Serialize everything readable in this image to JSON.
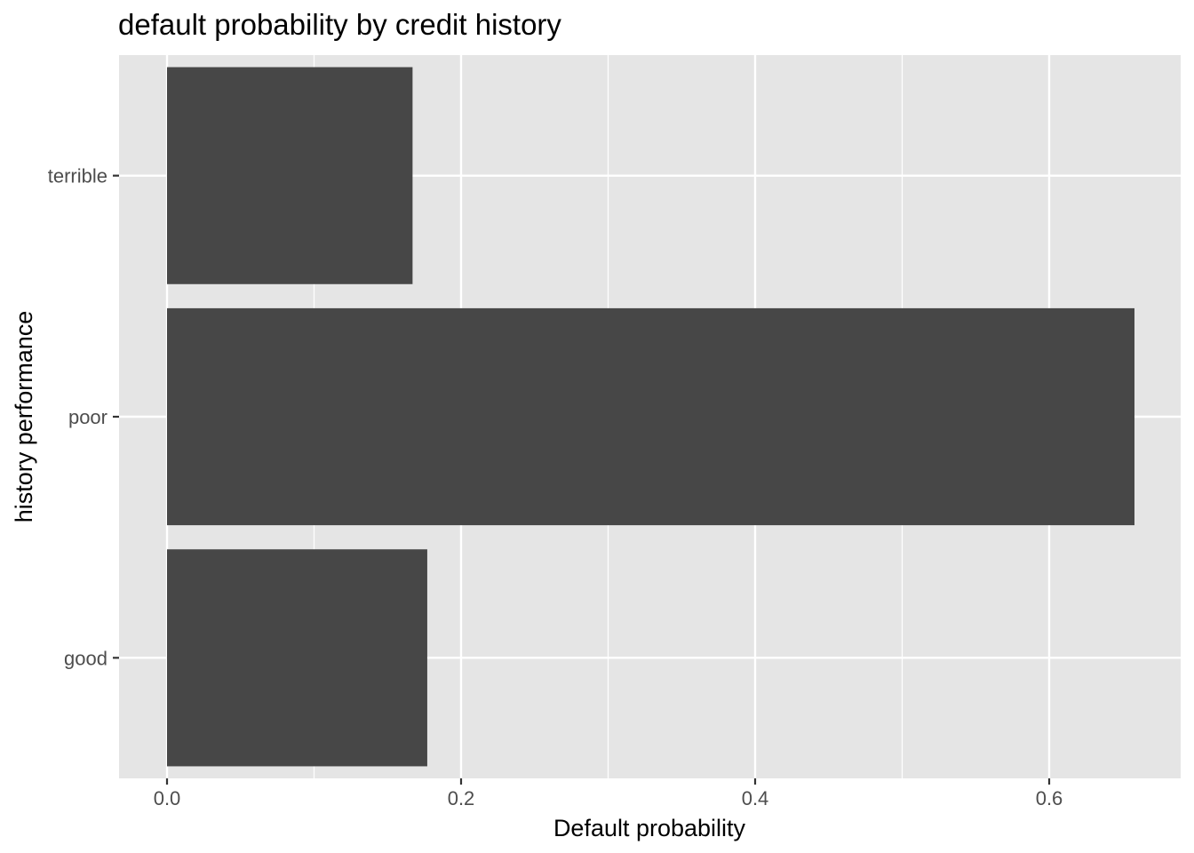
{
  "chart_data": {
    "type": "bar",
    "orientation": "horizontal",
    "title": "default probability by credit history",
    "xlabel": "Default probability",
    "ylabel": "history performance",
    "categories": [
      "good",
      "poor",
      "terrible"
    ],
    "values": [
      0.177,
      0.658,
      0.167
    ],
    "xlim": [
      -0.033,
      0.69
    ],
    "xticks": [
      0.0,
      0.2,
      0.4,
      0.6
    ],
    "xtick_labels": [
      "0.0",
      "0.2",
      "0.4",
      "0.6"
    ],
    "grid": true,
    "legend": "none",
    "colors": {
      "panel": "#e5e5e5",
      "bar": "#474747",
      "grid": "#ffffff",
      "tick_label": "#4d4d4d",
      "tick_mark": "#333333"
    }
  }
}
